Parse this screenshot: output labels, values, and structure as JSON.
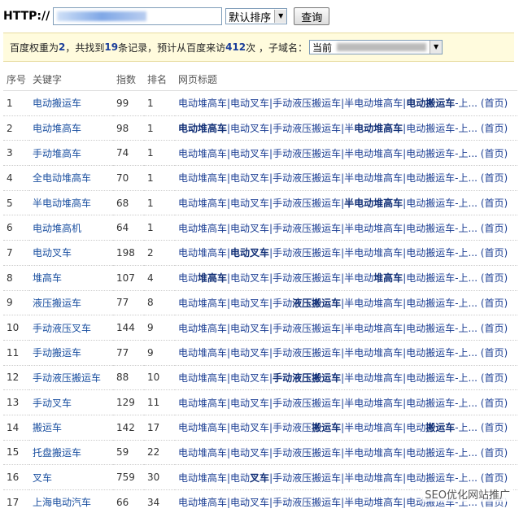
{
  "header": {
    "url_label": "HTTP://",
    "sort_select": "默认排序",
    "query_button": "查询"
  },
  "summary": {
    "weight_label": "百度权重为",
    "weight": 2,
    "found_label": "，共找到",
    "records": 19,
    "records_label": "条记录，预计从百度来访",
    "visits": 412,
    "visits_label": "次 ，子域名：",
    "subdomain": "当前"
  },
  "table": {
    "columns": [
      "序号",
      "关键字",
      "指数",
      "排名",
      "网页标题"
    ],
    "rows": [
      [
        1,
        "电动搬运车",
        99,
        1,
        "电动堆高车|电动叉车|手动液压搬运车|半电动堆高车|电动搬运车-上...",
        "(首页)"
      ],
      [
        2,
        "电动堆高车",
        98,
        1,
        "电动堆高车|电动叉车|手动液压搬运车|半电动堆高车|电动搬运车-上...",
        "(首页)"
      ],
      [
        3,
        "手动堆高车",
        74,
        1,
        "电动堆高车|电动叉车|手动液压搬运车|半电动堆高车|电动搬运车-上...",
        "(首页)"
      ],
      [
        4,
        "全电动堆高车",
        70,
        1,
        "电动堆高车|电动叉车|手动液压搬运车|半电动堆高车|电动搬运车-上...",
        "(首页)"
      ],
      [
        5,
        "半电动堆高车",
        68,
        1,
        "电动堆高车|电动叉车|手动液压搬运车|半电动堆高车|电动搬运车-上...",
        "(首页)"
      ],
      [
        6,
        "电动堆高机",
        64,
        1,
        "电动堆高车|电动叉车|手动液压搬运车|半电动堆高车|电动搬运车-上...",
        "(首页)"
      ],
      [
        7,
        "电动叉车",
        198,
        2,
        "电动堆高车|电动叉车|手动液压搬运车|半电动堆高车|电动搬运车-上...",
        "(首页)"
      ],
      [
        8,
        "堆高车",
        107,
        4,
        "电动堆高车|电动叉车|手动液压搬运车|半电动堆高车|电动搬运车-上...",
        "(首页)"
      ],
      [
        9,
        "液压搬运车",
        77,
        8,
        "电动堆高车|电动叉车|手动液压搬运车|半电动堆高车|电动搬运车-上...",
        "(首页)"
      ],
      [
        10,
        "手动液压叉车",
        144,
        9,
        "电动堆高车|电动叉车|手动液压搬运车|半电动堆高车|电动搬运车-上...",
        "(首页)"
      ],
      [
        11,
        "手动搬运车",
        77,
        9,
        "电动堆高车|电动叉车|手动液压搬运车|半电动堆高车|电动搬运车-上...",
        "(首页)"
      ],
      [
        12,
        "手动液压搬运车",
        88,
        10,
        "电动堆高车|电动叉车|手动液压搬运车|半电动堆高车|电动搬运车-上...",
        "(首页)"
      ],
      [
        13,
        "手动叉车",
        129,
        11,
        "电动堆高车|电动叉车|手动液压搬运车|半电动堆高车|电动搬运车-上...",
        "(首页)"
      ],
      [
        14,
        "搬运车",
        142,
        17,
        "电动堆高车|电动叉车|手动液压搬运车|半电动堆高车|电动搬运车-上...",
        "(首页)"
      ],
      [
        15,
        "托盘搬运车",
        59,
        22,
        "电动堆高车|电动叉车|手动液压搬运车|半电动堆高车|电动搬运车-上...",
        "(首页)"
      ],
      [
        16,
        "叉车",
        759,
        30,
        "电动堆高车|电动叉车|手动液压搬运车|半电动堆高车|电动搬运车-上...",
        "(首页)"
      ],
      [
        17,
        "上海电动汽车",
        66,
        34,
        "电动堆高车|电动叉车|手动液压搬运车|半电动堆高车|电动搬运车-上...",
        "(首页)"
      ]
    ]
  },
  "watermark": "SEO优化网站推广"
}
